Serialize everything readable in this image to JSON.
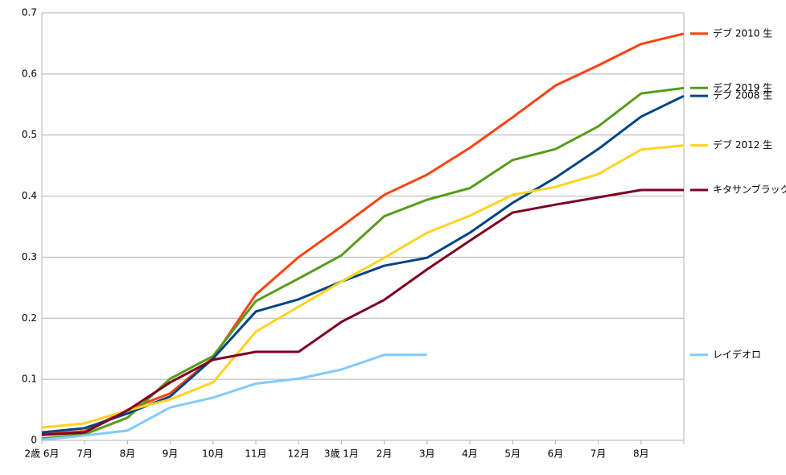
{
  "chart_data": {
    "type": "line",
    "categories": [
      "2歳 6月",
      "7月",
      "8月",
      "9月",
      "10月",
      "11月",
      "12月",
      "3歳 1月",
      "2月",
      "3月",
      "4月",
      "5月",
      "6月",
      "7月",
      "8月",
      null
    ],
    "series": [
      {
        "name": "デブ 2010 生",
        "color": "#ff420e",
        "values": [
          0.01,
          0.015,
          0.05,
          0.077,
          0.135,
          0.239,
          0.3,
          0.35,
          0.402,
          0.435,
          0.479,
          0.529,
          0.581,
          0.614,
          0.649,
          0.666
        ]
      },
      {
        "name": "デブ 2019 生",
        "color": "#579d1c",
        "values": [
          0.003,
          0.01,
          0.037,
          0.101,
          0.138,
          0.228,
          0.265,
          0.303,
          0.367,
          0.394,
          0.413,
          0.459,
          0.477,
          0.514,
          0.568,
          0.577
        ]
      },
      {
        "name": "デブ 2008 生",
        "color": "#004586",
        "values": [
          0.013,
          0.02,
          0.044,
          0.072,
          0.134,
          0.211,
          0.231,
          0.26,
          0.286,
          0.299,
          0.34,
          0.389,
          0.43,
          0.477,
          0.53,
          0.564
        ]
      },
      {
        "name": "デブ 2012 生",
        "color": "#ffd320",
        "values": [
          0.021,
          0.028,
          0.049,
          0.067,
          0.095,
          0.178,
          0.219,
          0.26,
          0.299,
          0.34,
          0.368,
          0.402,
          0.415,
          0.436,
          0.476,
          0.483
        ]
      },
      {
        "name": "キタサンブラック",
        "color": "#7e0021",
        "values": [
          0.009,
          0.013,
          0.049,
          0.095,
          0.132,
          0.145,
          0.145,
          0.194,
          0.23,
          0.28,
          0.327,
          0.373,
          0.386,
          0.398,
          0.41,
          0.41
        ]
      },
      {
        "name": "レイデオロ",
        "color": "#83caff",
        "values": [
          0.001,
          0.008,
          0.016,
          0.054,
          0.07,
          0.093,
          0.101,
          0.116,
          0.14,
          0.14,
          null,
          null,
          null,
          null,
          null,
          null
        ]
      }
    ],
    "ylim": [
      0,
      0.7
    ],
    "yticks": [
      0,
      0.1,
      0.2,
      0.3,
      0.4,
      0.5,
      0.6,
      0.7
    ],
    "grid": true,
    "legend": "right"
  }
}
